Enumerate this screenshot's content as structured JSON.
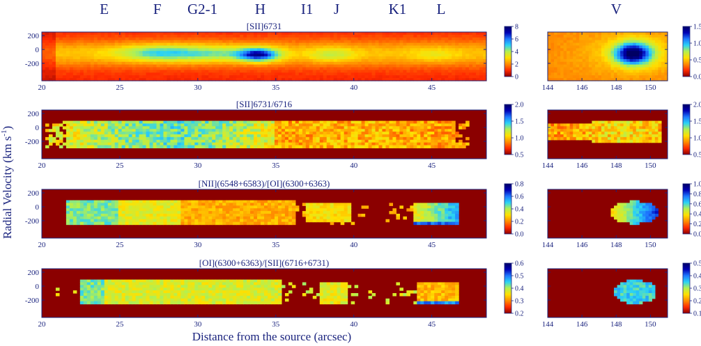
{
  "figure": {
    "ylabel_main": "Radial Velocity (km s",
    "ylabel_exp": "-1",
    "ylabel_close": ")",
    "xlabel": "Distance from the source (arcsec)"
  },
  "knots": [
    {
      "label": "E",
      "pos": 24.0
    },
    {
      "label": "F",
      "pos": 27.4
    },
    {
      "label": "G2-1",
      "pos": 30.3
    },
    {
      "label": "H",
      "pos": 34.0
    },
    {
      "label": "I1",
      "pos": 37.0
    },
    {
      "label": "J",
      "pos": 38.9
    },
    {
      "label": "K1",
      "pos": 42.8
    },
    {
      "label": "L",
      "pos": 45.6
    },
    {
      "label": "V",
      "pos": 148.0
    }
  ],
  "colors": {
    "axis": "#1a237e",
    "background_map": "#8b0000",
    "colormap": [
      "#8b0000",
      "#ff2a00",
      "#ff8c00",
      "#ffe000",
      "#b4f050",
      "#2ad2f5",
      "#1e78ff",
      "#0000b4",
      "#000064"
    ]
  },
  "chart_data": [
    {
      "type": "heatmap",
      "title": "[SII]6731",
      "left": {
        "xlim": [
          20,
          48.5
        ],
        "xticks": [
          20,
          25,
          30,
          35,
          40,
          45
        ],
        "ylim": [
          -450,
          250
        ],
        "yticks": [
          200,
          0,
          -200
        ]
      },
      "right": {
        "xlim": [
          144,
          151
        ],
        "xticks": [
          144,
          146,
          148,
          150
        ],
        "ylim": [
          -450,
          250
        ]
      },
      "colorbar_left": {
        "range": [
          0,
          8
        ],
        "ticks": [
          "8",
          "6",
          "4",
          "2",
          "0"
        ]
      },
      "colorbar_right": {
        "range": [
          0,
          1.5
        ],
        "ticks": [
          "1.5",
          "1.0",
          "0.5",
          "0.0"
        ]
      }
    },
    {
      "type": "heatmap",
      "title": "[SII]6731/6716",
      "left": {
        "xlim": [
          20,
          48.5
        ],
        "xticks": [
          20,
          25,
          30,
          35,
          40,
          45
        ],
        "ylim": [
          -450,
          250
        ],
        "yticks": [
          200,
          0,
          -200
        ]
      },
      "right": {
        "xlim": [
          144,
          151
        ],
        "xticks": [
          144,
          146,
          148,
          150
        ],
        "ylim": [
          -450,
          250
        ]
      },
      "colorbar_left": {
        "range": [
          0.5,
          2.0
        ],
        "ticks": [
          "2.0",
          "1.5",
          "1.0",
          "0.5"
        ]
      },
      "colorbar_right": {
        "range": [
          0.5,
          2.0
        ],
        "ticks": [
          "2.0",
          "1.5",
          "1.0",
          "0.5"
        ]
      }
    },
    {
      "type": "heatmap",
      "title": "[NII](6548+6583)/[OI](6300+6363)",
      "left": {
        "xlim": [
          20,
          48.5
        ],
        "xticks": [
          20,
          25,
          30,
          35,
          40,
          45
        ],
        "ylim": [
          -450,
          250
        ],
        "yticks": [
          200,
          0,
          -200
        ]
      },
      "right": {
        "xlim": [
          144,
          151
        ],
        "xticks": [
          144,
          146,
          148,
          150
        ],
        "ylim": [
          -450,
          250
        ]
      },
      "colorbar_left": {
        "range": [
          0,
          0.8
        ],
        "ticks": [
          "0.8",
          "0.6",
          "0.4",
          "0.2",
          "0.0"
        ]
      },
      "colorbar_right": {
        "range": [
          0,
          1.0
        ],
        "ticks": [
          "1.0",
          "0.8",
          "0.6",
          "0.4",
          "0.2",
          "0.0"
        ]
      }
    },
    {
      "type": "heatmap",
      "title": "[OI](6300+6363)/[SII](6716+6731)",
      "left": {
        "xlim": [
          20,
          48.5
        ],
        "xticks": [
          20,
          25,
          30,
          35,
          40,
          45
        ],
        "ylim": [
          -450,
          250
        ],
        "yticks": [
          200,
          0,
          -200
        ]
      },
      "right": {
        "xlim": [
          144,
          151
        ],
        "xticks": [
          144,
          146,
          148,
          150
        ],
        "ylim": [
          -450,
          250
        ]
      },
      "colorbar_left": {
        "range": [
          0.2,
          0.6
        ],
        "ticks": [
          "0.6",
          "0.5",
          "0.4",
          "0.3",
          "0.2"
        ]
      },
      "colorbar_right": {
        "range": [
          0.1,
          0.5
        ],
        "ticks": [
          "0.5",
          "0.4",
          "0.3",
          "0.2",
          "0.1"
        ]
      }
    }
  ]
}
